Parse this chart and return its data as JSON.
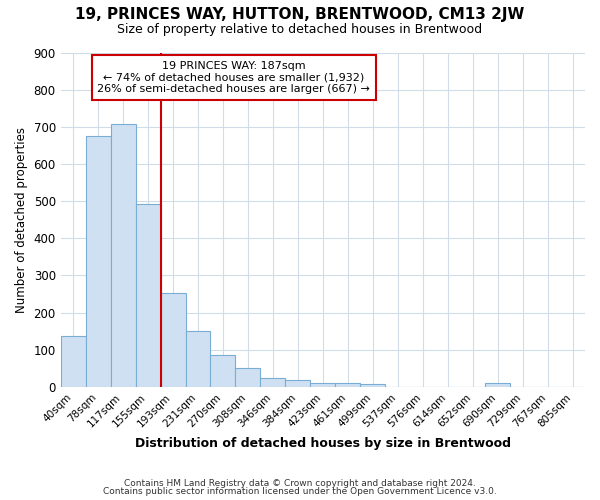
{
  "title": "19, PRINCES WAY, HUTTON, BRENTWOOD, CM13 2JW",
  "subtitle": "Size of property relative to detached houses in Brentwood",
  "xlabel": "Distribution of detached houses by size in Brentwood",
  "ylabel": "Number of detached properties",
  "bar_labels": [
    "40sqm",
    "78sqm",
    "117sqm",
    "155sqm",
    "193sqm",
    "231sqm",
    "270sqm",
    "308sqm",
    "346sqm",
    "384sqm",
    "423sqm",
    "461sqm",
    "499sqm",
    "537sqm",
    "576sqm",
    "614sqm",
    "652sqm",
    "690sqm",
    "729sqm",
    "767sqm",
    "805sqm"
  ],
  "bar_values": [
    138,
    675,
    707,
    493,
    252,
    151,
    85,
    52,
    25,
    20,
    10,
    10,
    8,
    1,
    1,
    1,
    1,
    10,
    0,
    0,
    0
  ],
  "bar_color": "#cfe0f3",
  "bar_edge_color": "#7aadd4",
  "vline_color": "#cc0000",
  "annotation_text": "19 PRINCES WAY: 187sqm\n← 74% of detached houses are smaller (1,932)\n26% of semi-detached houses are larger (667) →",
  "annotation_box_color": "#ffffff",
  "annotation_box_edge": "#cc0000",
  "ylim": [
    0,
    900
  ],
  "yticks": [
    0,
    100,
    200,
    300,
    400,
    500,
    600,
    700,
    800,
    900
  ],
  "footer1": "Contains HM Land Registry data © Crown copyright and database right 2024.",
  "footer2": "Contains public sector information licensed under the Open Government Licence v3.0.",
  "background_color": "#ffffff",
  "grid_color": "#d0dce8",
  "title_fontsize": 11,
  "subtitle_fontsize": 9
}
